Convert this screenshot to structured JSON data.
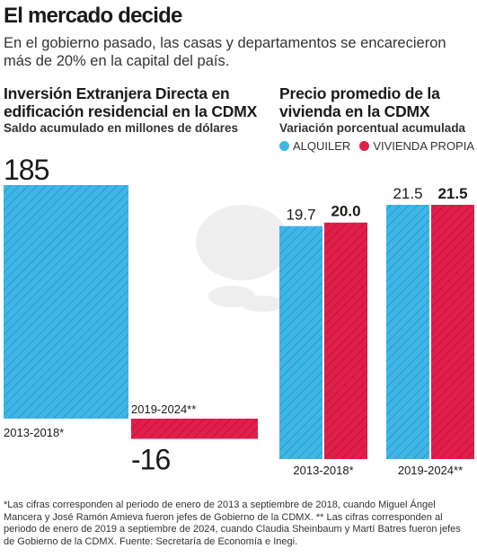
{
  "headline": "El mercado decide",
  "subtitle": "En el gobierno pasado, las casas y departamentos se encarecieron más de 20% en la capital del país.",
  "colors": {
    "blue": "#3fb6e6",
    "red": "#e21e4a",
    "text": "#1a1a1a"
  },
  "legend": {
    "alquiler": "ALQUILER",
    "vivienda": "VIVIENDA PROPIA"
  },
  "chart_data": [
    {
      "type": "bar",
      "title": "Inversión Extranjera Directa en edificación residencial en la CDMX",
      "subtitle": "Saldo acumulado en millones de dólares",
      "categories": [
        "2013-2018*",
        "2019-2024**"
      ],
      "values": [
        185,
        -16
      ],
      "value_labels": [
        "185",
        "-16"
      ]
    },
    {
      "type": "bar",
      "title": "Precio promedio de la vivienda en la CDMX",
      "subtitle": "Variación porcentual acumulada",
      "categories": [
        "2013-2018*",
        "2019-2024**"
      ],
      "series": [
        {
          "name": "ALQUILER",
          "values": [
            19.7,
            21.5
          ],
          "value_labels": [
            "19.7",
            "21.5"
          ]
        },
        {
          "name": "VIVIENDA PROPIA",
          "values": [
            20.0,
            21.5
          ],
          "value_labels": [
            "20.0",
            "21.5"
          ]
        }
      ]
    }
  ],
  "footnote": "*Las cifras corresponden al periodo de enero de 2013 a septiembre de 2018, cuando Miguel Ángel Mancera y José Ramón Amieva fueron jefes de Gobierno de la CDMX. ** Las cifras corresponden al periodo de enero de 2019 a septiembre de 2024, cuando Claudia Sheinbaum y Martí Batres fueron jefes de Gobierno de la CDMX. Fuente: Secretaría de Economía e Inegi."
}
